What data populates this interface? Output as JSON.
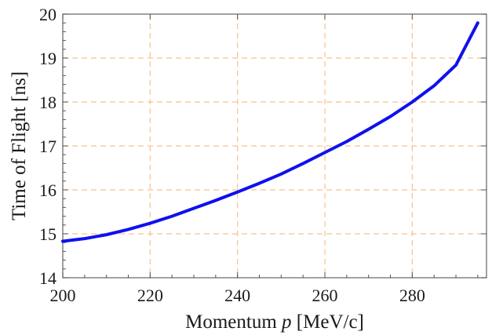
{
  "chart_data": {
    "type": "line",
    "title": "",
    "xlabel_parts": [
      "Momentum ",
      "p",
      " [MeV/c]"
    ],
    "ylabel": "Time of Flight [ns]",
    "xlim": [
      200,
      297
    ],
    "ylim": [
      14,
      20
    ],
    "xticks": [
      200,
      220,
      240,
      260,
      280
    ],
    "yticks": [
      14,
      15,
      16,
      17,
      18,
      19,
      20
    ],
    "grid": true,
    "legend": "none",
    "series": [
      {
        "color": "#1010ee",
        "x": [
          200,
          205,
          210,
          215,
          220,
          225,
          230,
          235,
          240,
          245,
          250,
          255,
          260,
          265,
          270,
          275,
          280,
          285,
          290,
          295
        ],
        "y": [
          14.83,
          14.89,
          14.98,
          15.1,
          15.24,
          15.4,
          15.58,
          15.76,
          15.95,
          16.15,
          16.36,
          16.6,
          16.85,
          17.1,
          17.38,
          17.67,
          18.0,
          18.37,
          18.84,
          19.8
        ]
      }
    ]
  }
}
